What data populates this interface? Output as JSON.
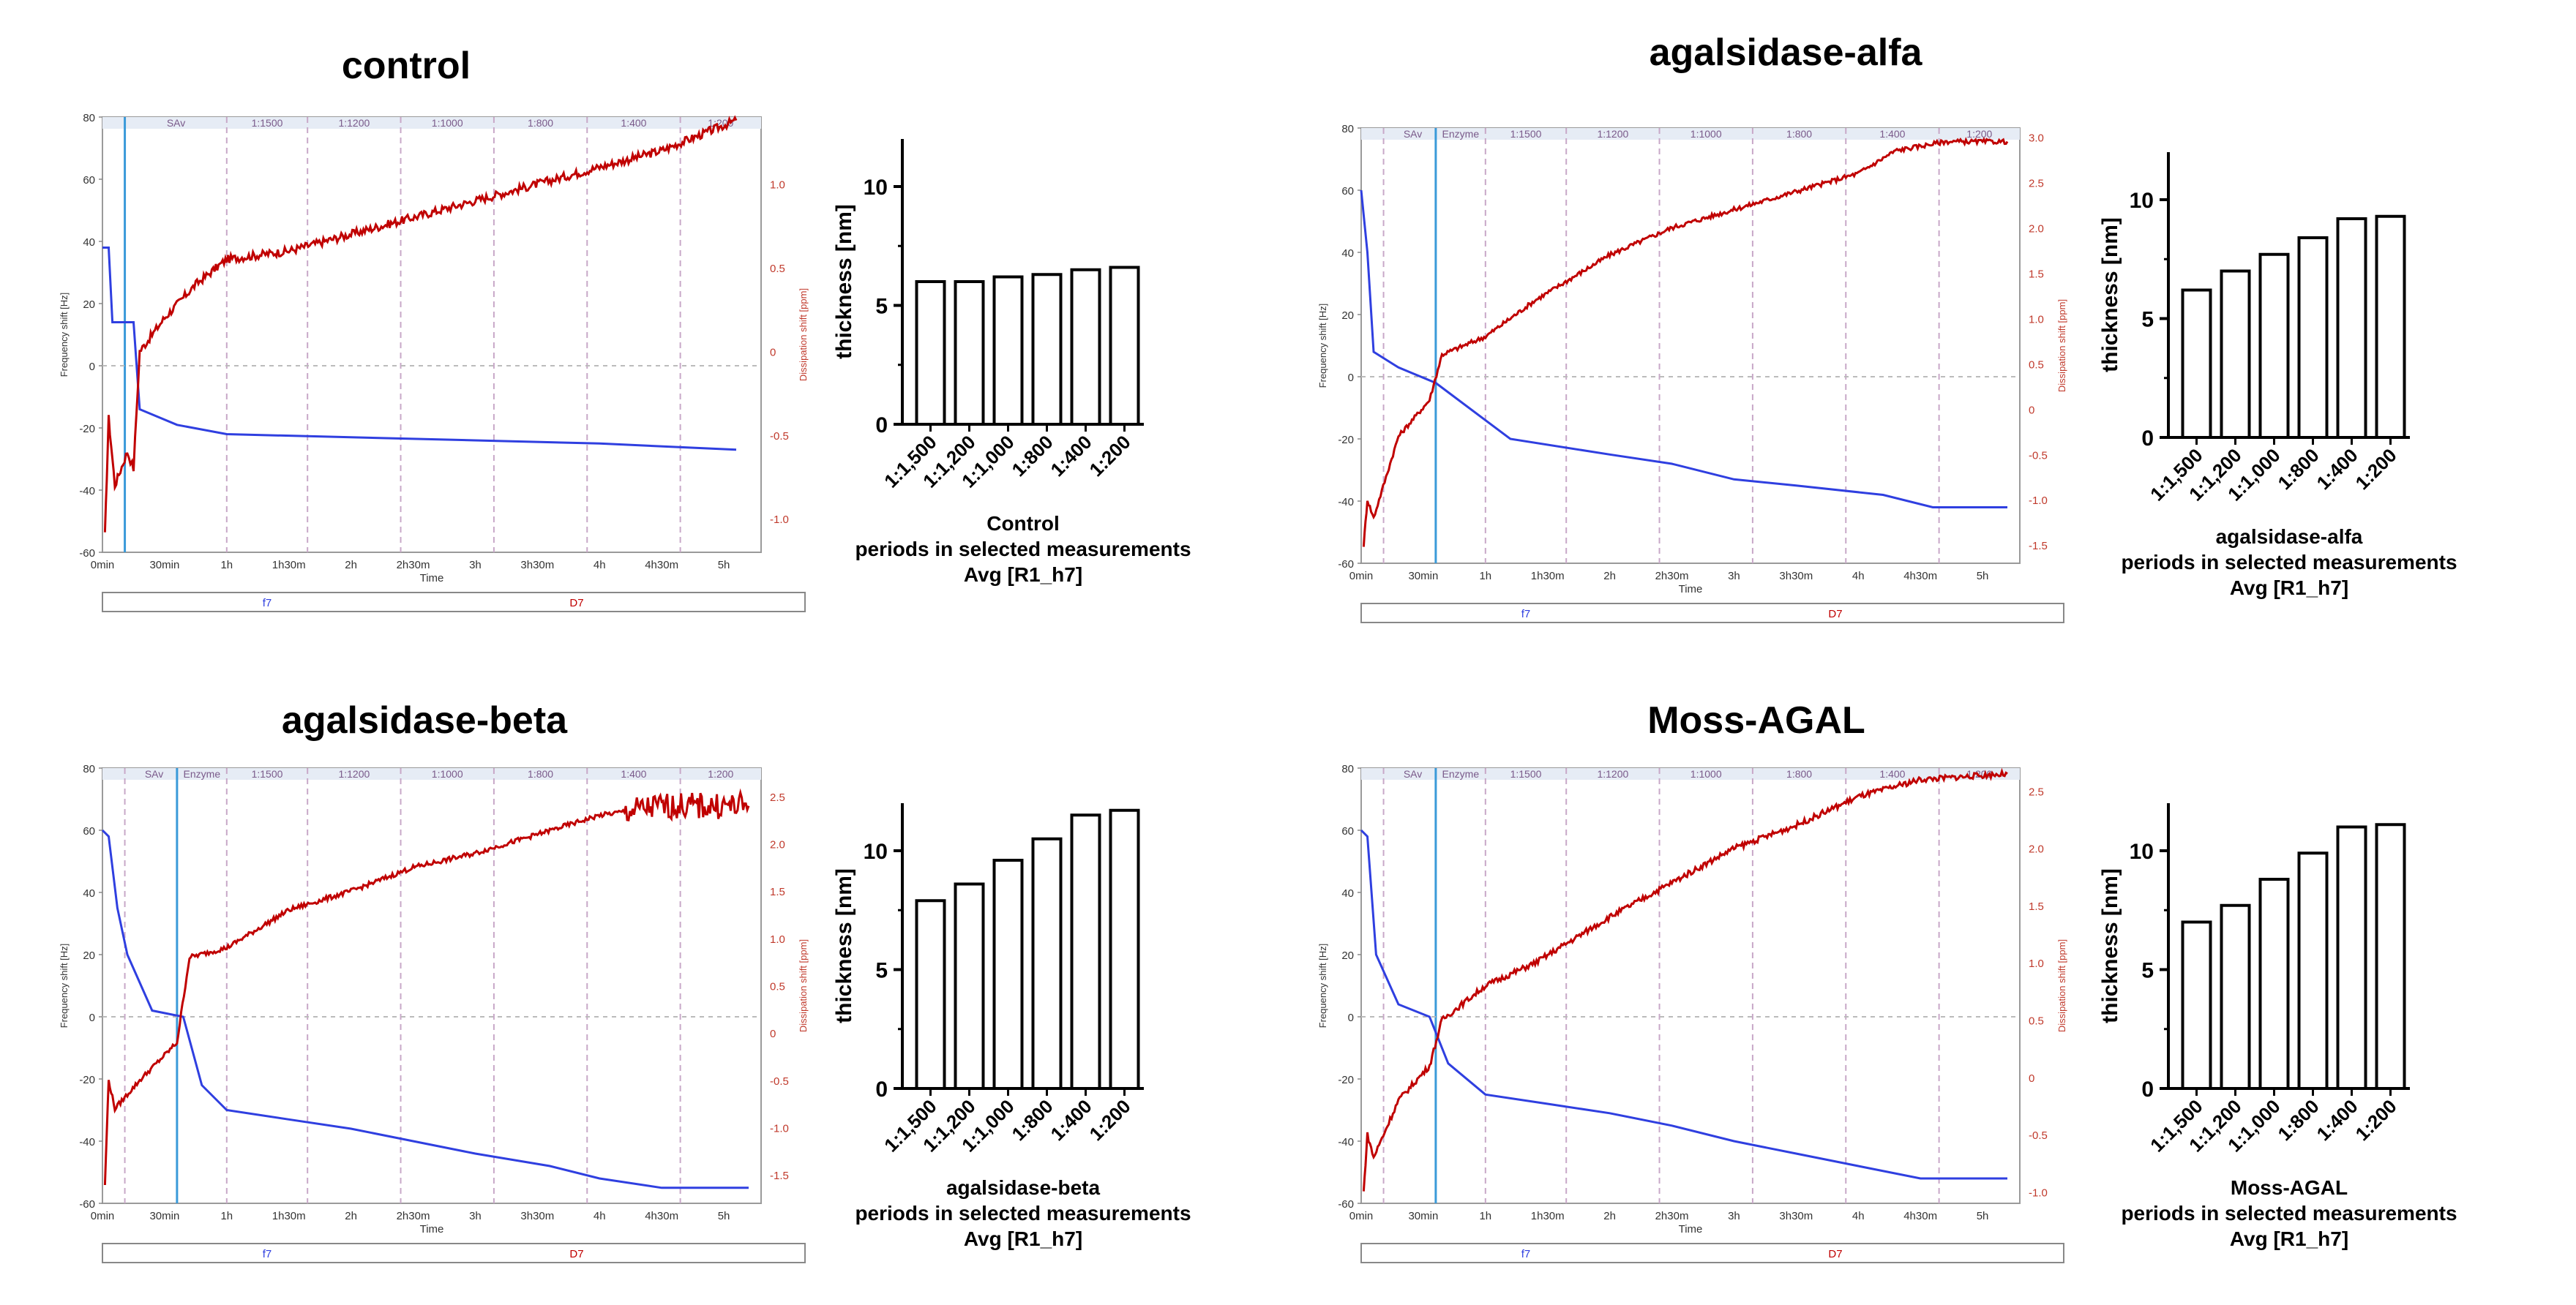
{
  "panels": [
    {
      "id": "control",
      "title": "control",
      "qcm": {
        "y_left_label": "Frequency shift [Hz]",
        "y_right_label": "Dissipation shift [ppm]",
        "x_label": "Time",
        "y_left_ticks": [
          "80",
          "60",
          "40",
          "20",
          "0",
          "-20",
          "-40",
          "-60"
        ],
        "y_right_ticks": [
          "1.0",
          "0.5",
          "0",
          "-0.5",
          "-1.0"
        ],
        "x_ticks": [
          "0min",
          "30min",
          "1h",
          "1h30m",
          "2h",
          "2h30m",
          "3h",
          "3h30m",
          "4h",
          "4h30m",
          "5h"
        ],
        "band_labels": [
          "SAv",
          "1:1500",
          "1:1200",
          "1:1000",
          "1:800",
          "1:400",
          "1:200"
        ],
        "legend": [
          "f7",
          "D7"
        ]
      },
      "bar": {
        "title": "Control",
        "categories": [
          "1:1,500",
          "1:1,200",
          "1:1,000",
          "1:800",
          "1:400",
          "1:200"
        ],
        "values": [
          6.0,
          6.0,
          6.2,
          6.3,
          6.5,
          6.6
        ],
        "ylim": [
          0,
          12
        ],
        "y_ticks": [
          "0",
          "5",
          "10"
        ],
        "ylabel": "thickness [nm]",
        "xlabel_line2": "periods in selected measurements",
        "xlabel_line3": "Avg [R1_h7]"
      }
    },
    {
      "id": "alfa",
      "title": "agalsidase-alfa",
      "qcm": {
        "y_left_label": "Frequency shift [Hz]",
        "y_right_label": "Dissipation shift [ppm]",
        "x_label": "Time",
        "y_left_ticks": [
          "80",
          "60",
          "40",
          "20",
          "0",
          "-20",
          "-40",
          "-60"
        ],
        "y_right_ticks": [
          "3.0",
          "2.5",
          "2.0",
          "1.5",
          "1.0",
          "0.5",
          "0",
          "-0.5",
          "-1.0",
          "-1.5"
        ],
        "x_ticks": [
          "0min",
          "30min",
          "1h",
          "1h30m",
          "2h",
          "2h30m",
          "3h",
          "3h30m",
          "4h",
          "4h30m",
          "5h"
        ],
        "band_labels": [
          "SAv",
          "Enzyme",
          "1:1500",
          "1:1200",
          "1:1000",
          "1:800",
          "1:400",
          "1:200"
        ],
        "legend": [
          "f7",
          "D7"
        ]
      },
      "bar": {
        "title": "agalsidase-alfa",
        "categories": [
          "1:1,500",
          "1:1,200",
          "1:1,000",
          "1:800",
          "1:400",
          "1:200"
        ],
        "values": [
          6.2,
          7.0,
          7.7,
          8.4,
          9.2,
          9.3
        ],
        "ylim": [
          0,
          12
        ],
        "y_ticks": [
          "0",
          "5",
          "10"
        ],
        "ylabel": "thickness [nm]",
        "xlabel_line2": "periods in selected measurements",
        "xlabel_line3": "Avg [R1_h7]"
      }
    },
    {
      "id": "beta",
      "title": "agalsidase-beta",
      "qcm": {
        "y_left_label": "Frequency shift [Hz]",
        "y_right_label": "Dissipation shift [ppm]",
        "x_label": "Time",
        "y_left_ticks": [
          "80",
          "60",
          "40",
          "20",
          "0",
          "-20",
          "-40",
          "-60"
        ],
        "y_right_ticks": [
          "2.5",
          "2.0",
          "1.5",
          "1.0",
          "0.5",
          "0",
          "-0.5",
          "-1.0",
          "-1.5"
        ],
        "x_ticks": [
          "0min",
          "30min",
          "1h",
          "1h30m",
          "2h",
          "2h30m",
          "3h",
          "3h30m",
          "4h",
          "4h30m",
          "5h"
        ],
        "band_labels": [
          "SAv",
          "Enzyme",
          "1:1500",
          "1:1200",
          "1:1000",
          "1:800",
          "1:400",
          "1:200"
        ],
        "legend": [
          "f7",
          "D7"
        ]
      },
      "bar": {
        "title": "agalsidase-beta",
        "categories": [
          "1:1,500",
          "1:1,200",
          "1:1,000",
          "1:800",
          "1:400",
          "1:200"
        ],
        "values": [
          7.9,
          8.6,
          9.6,
          10.5,
          11.5,
          11.7
        ],
        "ylim": [
          0,
          12
        ],
        "y_ticks": [
          "0",
          "5",
          "10"
        ],
        "ylabel": "thickness [nm]",
        "xlabel_line2": "periods in selected measurements",
        "xlabel_line3": "Avg [R1_h7]"
      }
    },
    {
      "id": "moss",
      "title": "Moss-AGAL",
      "qcm": {
        "y_left_label": "Frequency shift [Hz]",
        "y_right_label": "Dissipation shift [ppm]",
        "x_label": "Time",
        "y_left_ticks": [
          "80",
          "60",
          "40",
          "20",
          "0",
          "-20",
          "-40",
          "-60"
        ],
        "y_right_ticks": [
          "2.5",
          "2.0",
          "1.5",
          "1.0",
          "0.5",
          "0",
          "-0.5",
          "-1.0"
        ],
        "x_ticks": [
          "0min",
          "30min",
          "1h",
          "1h30m",
          "2h",
          "2h30m",
          "3h",
          "3h30m",
          "4h",
          "4h30m",
          "5h"
        ],
        "band_labels": [
          "SAv",
          "Enzyme",
          "1:1500",
          "1:1200",
          "1:1000",
          "1:800",
          "1:400",
          "1:200"
        ],
        "legend": [
          "f7",
          "D7"
        ]
      },
      "bar": {
        "title": "Moss-AGAL",
        "categories": [
          "1:1,500",
          "1:1,200",
          "1:1,000",
          "1:800",
          "1:400",
          "1:200"
        ],
        "values": [
          7.0,
          7.7,
          8.8,
          9.9,
          11.0,
          11.1
        ],
        "ylim": [
          0,
          12
        ],
        "y_ticks": [
          "0",
          "5",
          "10"
        ],
        "ylabel": "thickness [nm]",
        "xlabel_line2": "periods in selected measurements",
        "xlabel_line3": "Avg [R1_h7]"
      }
    }
  ],
  "chart_data": [
    {
      "type": "line",
      "title": "control",
      "xlabel": "Time",
      "ylabel": "Frequency shift [Hz]",
      "y2label": "Dissipation shift [ppm]",
      "xlim": [
        0,
        5.3
      ],
      "ylim": [
        -60,
        80
      ],
      "y2lim": [
        -1.2,
        1.4
      ],
      "series": [
        {
          "name": "f7",
          "x": [
            0,
            0.05,
            0.08,
            0.25,
            0.3,
            0.6,
            1.0,
            2,
            3,
            4,
            5.1
          ],
          "y": [
            38,
            38,
            14,
            14,
            -14,
            -19,
            -22,
            -23,
            -24,
            -25,
            -27
          ]
        },
        {
          "name": "D7",
          "x": [
            0.02,
            0.05,
            0.1,
            0.2,
            0.25,
            0.3,
            0.5,
            0.75,
            1,
            1.5,
            2,
            2.5,
            3,
            3.5,
            4,
            4.5,
            5,
            5.1
          ],
          "y": [
            -1.1,
            -0.4,
            -0.8,
            -0.6,
            -0.7,
            0.0,
            0.2,
            0.4,
            0.55,
            0.6,
            0.7,
            0.8,
            0.9,
            1.0,
            1.1,
            1.2,
            1.35,
            1.38
          ]
        }
      ]
    },
    {
      "type": "line",
      "title": "agalsidase-alfa",
      "xlabel": "Time",
      "ylabel": "Frequency shift [Hz]",
      "y2label": "Dissipation shift [ppm]",
      "xlim": [
        0,
        5.3
      ],
      "ylim": [
        -60,
        80
      ],
      "y2lim": [
        -1.7,
        3.1
      ],
      "series": [
        {
          "name": "f7",
          "x": [
            0,
            0.05,
            0.1,
            0.3,
            0.6,
            1.2,
            2,
            2.5,
            3,
            3.5,
            4.2,
            4.6,
            5.2
          ],
          "y": [
            60,
            40,
            8,
            3,
            -2,
            -20,
            -25,
            -28,
            -33,
            -35,
            -38,
            -42,
            -42
          ]
        },
        {
          "name": "D7",
          "x": [
            0.02,
            0.05,
            0.1,
            0.3,
            0.55,
            0.65,
            1.0,
            1.4,
            2,
            2.5,
            3,
            3.5,
            4,
            4.3,
            4.7,
            5.2
          ],
          "y": [
            -1.5,
            -1.0,
            -1.2,
            -0.3,
            0.1,
            0.6,
            0.8,
            1.2,
            1.7,
            2.0,
            2.2,
            2.4,
            2.6,
            2.85,
            2.95,
            2.95
          ]
        }
      ]
    },
    {
      "type": "line",
      "title": "agalsidase-beta",
      "xlabel": "Time",
      "ylabel": "Frequency shift [Hz]",
      "y2label": "Dissipation shift [ppm]",
      "xlim": [
        0,
        5.3
      ],
      "ylim": [
        -60,
        80
      ],
      "y2lim": [
        -1.8,
        2.8
      ],
      "series": [
        {
          "name": "f7",
          "x": [
            0,
            0.05,
            0.12,
            0.2,
            0.4,
            0.65,
            0.8,
            1,
            1.5,
            2,
            2.5,
            3,
            3.6,
            4,
            4.5,
            5.2
          ],
          "y": [
            60,
            58,
            35,
            20,
            2,
            0,
            -22,
            -30,
            -33,
            -36,
            -40,
            -44,
            -48,
            -52,
            -55,
            -55
          ]
        },
        {
          "name": "D7",
          "x": [
            0.02,
            0.05,
            0.1,
            0.3,
            0.6,
            0.7,
            1.0,
            1.5,
            2,
            2.5,
            3,
            3.5,
            4,
            4.5,
            5.2
          ],
          "y": [
            -1.6,
            -0.5,
            -0.8,
            -0.5,
            -0.1,
            0.8,
            0.9,
            1.3,
            1.5,
            1.75,
            1.9,
            2.1,
            2.3,
            2.4,
            2.4
          ]
        }
      ]
    },
    {
      "type": "line",
      "title": "Moss-AGAL",
      "xlabel": "Time",
      "ylabel": "Frequency shift [Hz]",
      "y2label": "Dissipation shift [ppm]",
      "xlim": [
        0,
        5.3
      ],
      "ylim": [
        -60,
        80
      ],
      "y2lim": [
        -1.1,
        2.7
      ],
      "series": [
        {
          "name": "f7",
          "x": [
            0,
            0.05,
            0.12,
            0.3,
            0.55,
            0.7,
            1,
            1.5,
            2,
            2.5,
            3,
            3.5,
            4,
            4.5,
            5.2
          ],
          "y": [
            60,
            58,
            20,
            4,
            0,
            -15,
            -25,
            -28,
            -31,
            -35,
            -40,
            -44,
            -48,
            -52,
            -52
          ]
        },
        {
          "name": "D7",
          "x": [
            0.02,
            0.05,
            0.1,
            0.3,
            0.55,
            0.65,
            1.0,
            1.4,
            2,
            2.5,
            3,
            3.5,
            4,
            4.5,
            5.2
          ],
          "y": [
            -1.0,
            -0.5,
            -0.7,
            -0.2,
            0.1,
            0.5,
            0.8,
            1.0,
            1.4,
            1.7,
            2.0,
            2.2,
            2.45,
            2.6,
            2.65
          ]
        }
      ]
    },
    {
      "type": "bar",
      "title": "Control",
      "categories": [
        "1:1,500",
        "1:1,200",
        "1:1,000",
        "1:800",
        "1:400",
        "1:200"
      ],
      "values": [
        6.0,
        6.0,
        6.2,
        6.3,
        6.5,
        6.6
      ],
      "ylabel": "thickness [nm]",
      "ylim": [
        0,
        12
      ]
    },
    {
      "type": "bar",
      "title": "agalsidase-alfa",
      "categories": [
        "1:1,500",
        "1:1,200",
        "1:1,000",
        "1:800",
        "1:400",
        "1:200"
      ],
      "values": [
        6.2,
        7.0,
        7.7,
        8.4,
        9.2,
        9.3
      ],
      "ylabel": "thickness [nm]",
      "ylim": [
        0,
        12
      ]
    },
    {
      "type": "bar",
      "title": "agalsidase-beta",
      "categories": [
        "1:1,500",
        "1:1,200",
        "1:1,000",
        "1:800",
        "1:400",
        "1:200"
      ],
      "values": [
        7.9,
        8.6,
        9.6,
        10.5,
        11.5,
        11.7
      ],
      "ylabel": "thickness [nm]",
      "ylim": [
        0,
        12
      ]
    },
    {
      "type": "bar",
      "title": "Moss-AGAL",
      "categories": [
        "1:1,500",
        "1:1,200",
        "1:1,000",
        "1:800",
        "1:400",
        "1:200"
      ],
      "values": [
        7.0,
        7.7,
        8.8,
        9.9,
        11.0,
        11.1
      ],
      "ylabel": "thickness [nm]",
      "ylim": [
        0,
        12
      ]
    }
  ]
}
